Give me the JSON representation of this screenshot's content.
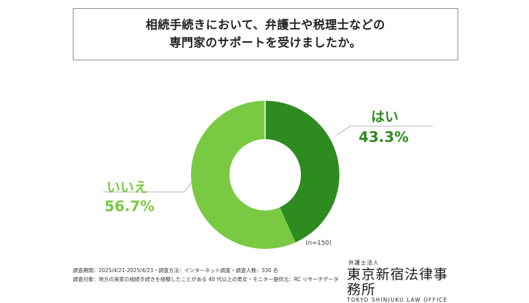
{
  "title": {
    "line1": "相続手続きにおいて、弁護士や税理士などの",
    "line2": "専門家のサポートを受けましたか。"
  },
  "chart_data": {
    "type": "pie",
    "categories": [
      "はい",
      "いいえ"
    ],
    "values": [
      43.3,
      56.7
    ],
    "value_labels": [
      "43.3%",
      "56.7%"
    ],
    "colors": [
      "#2e8b1f",
      "#7ac943"
    ],
    "donut": true,
    "sample_note": "(n=150)"
  },
  "footer": {
    "line1": "調査期間：2025/4/21-2025/4/23・調査方法：インターネット調査・調査人数：330 名",
    "line2": "調査対象：地方の実家の相続手続きを経験したことがある 40 代以上の男女・モニター提供元：RC リサーチデータ"
  },
  "logo": {
    "small": "弁護士法人",
    "main": "東京新宿法律事務所",
    "english": "TOKYO SHINJUKU LAW OFFICE"
  }
}
